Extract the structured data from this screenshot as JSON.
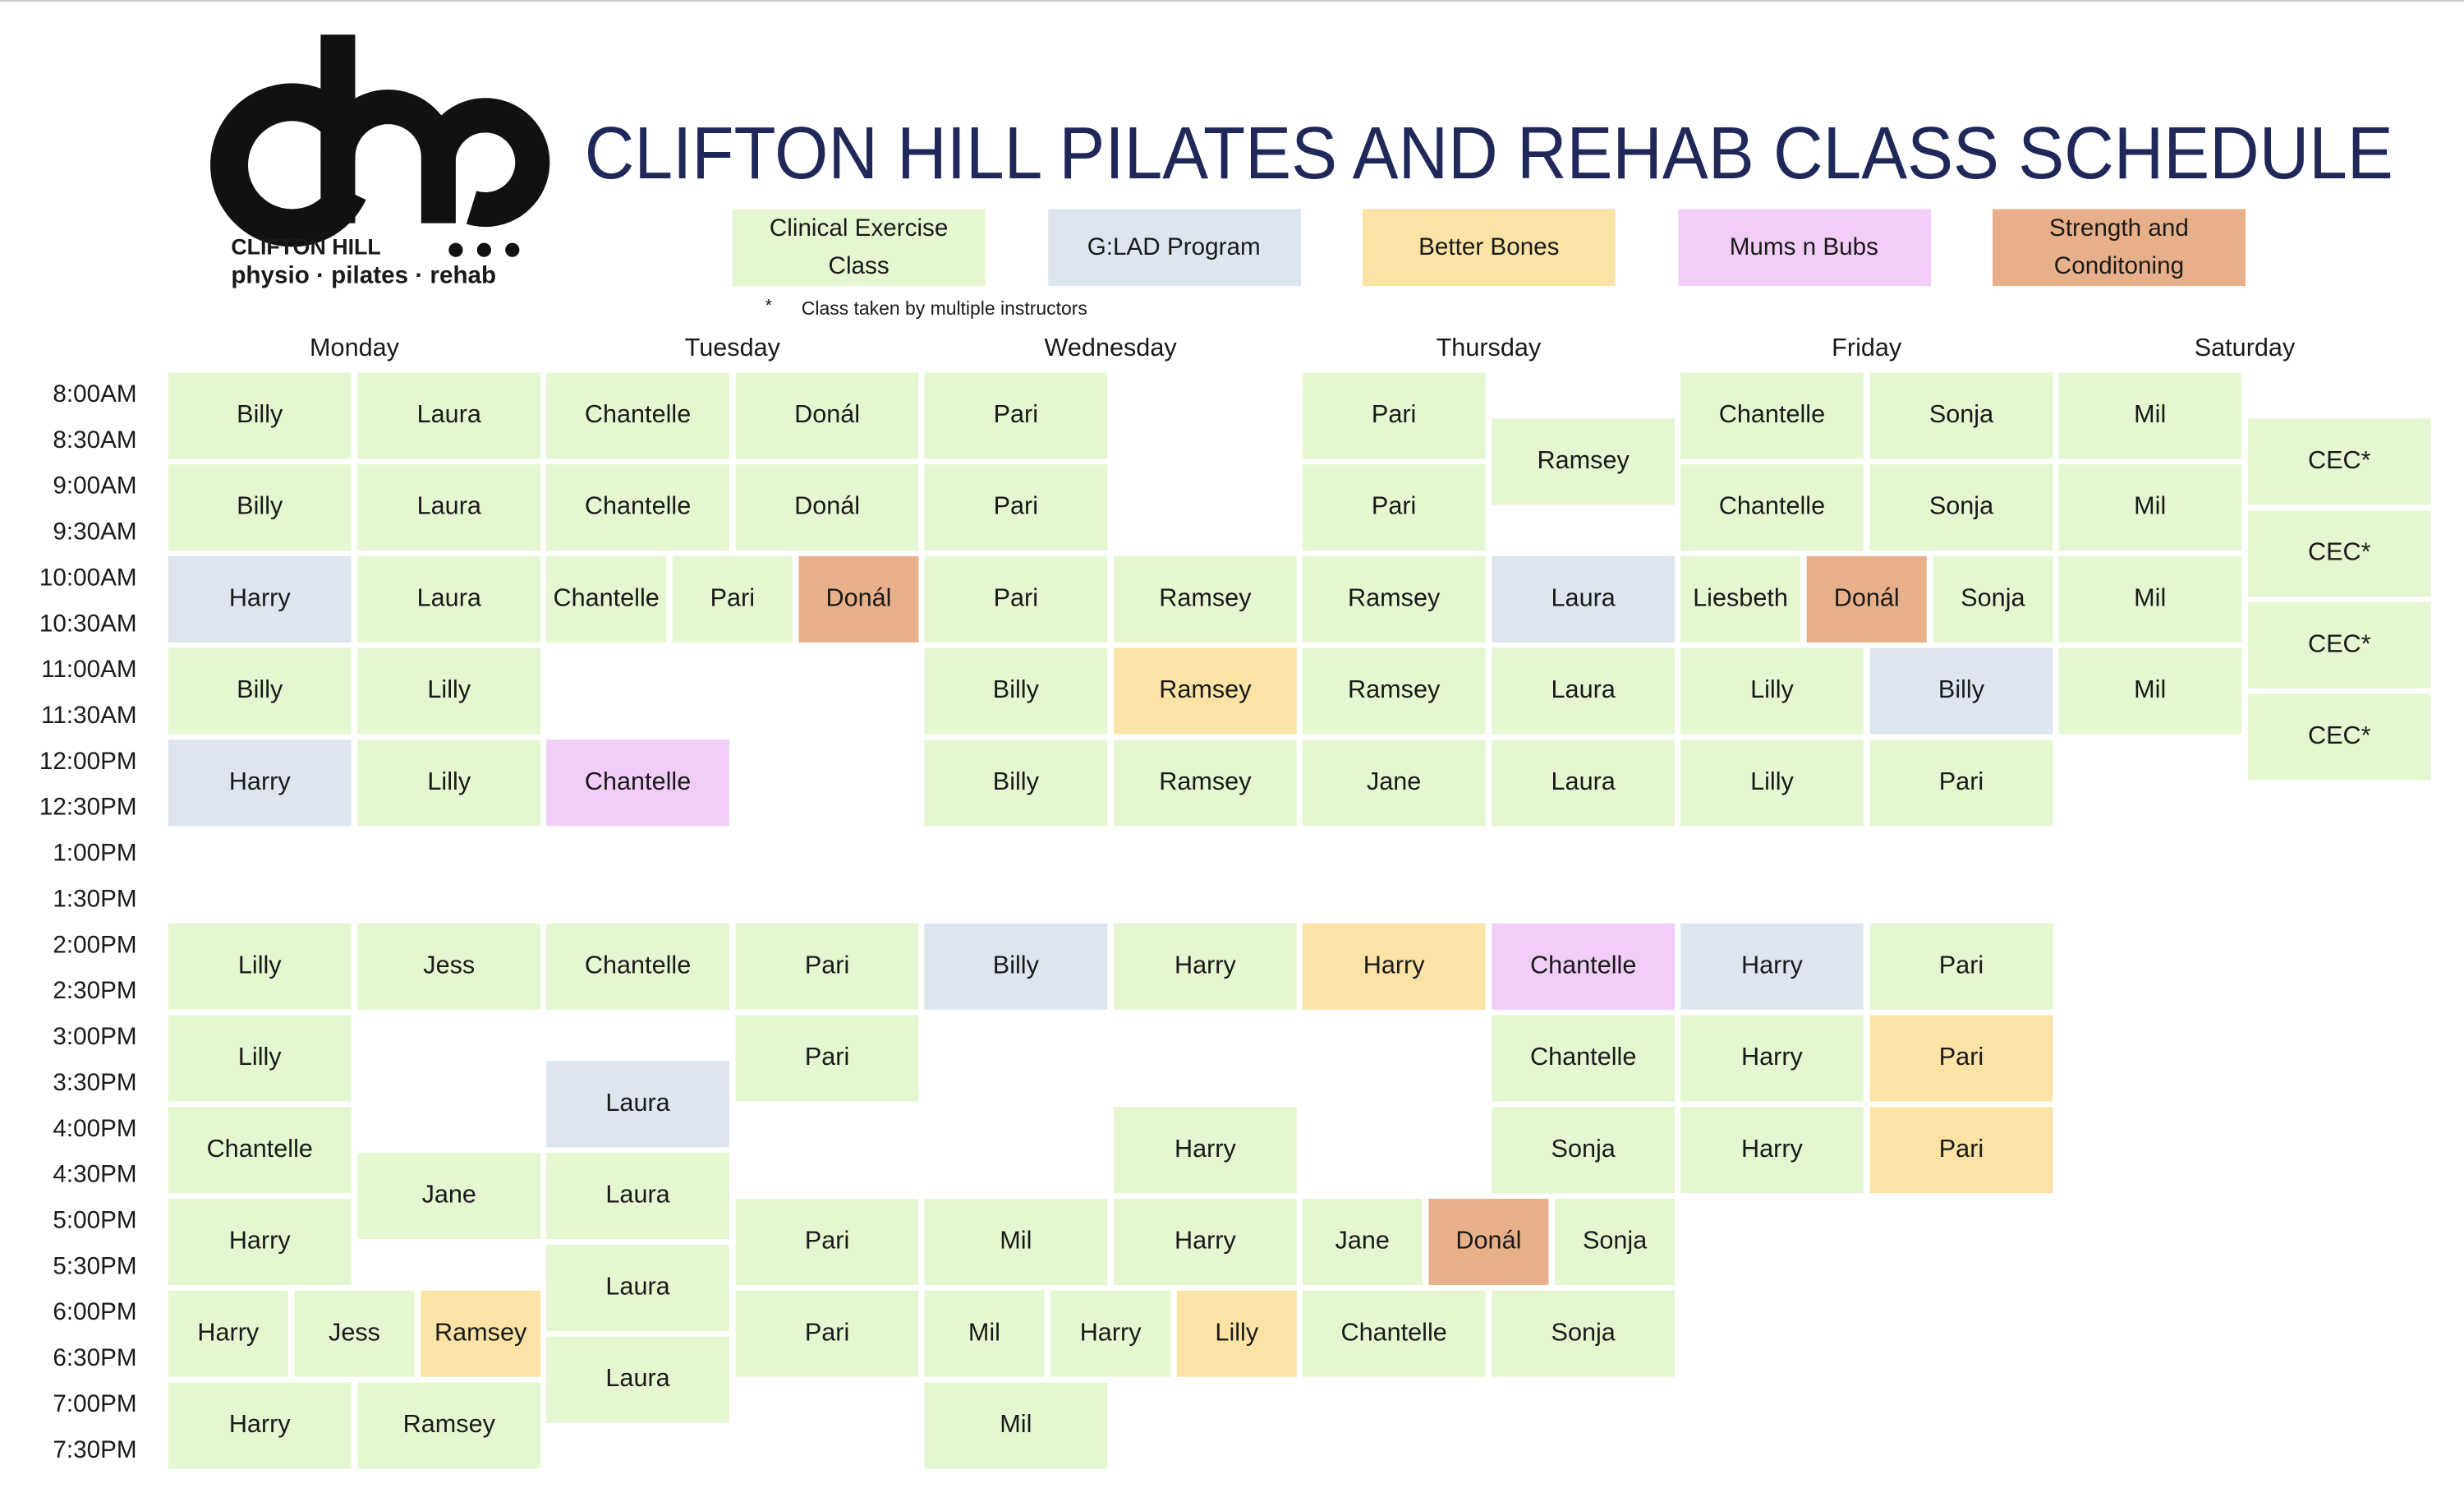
{
  "header": {
    "title": "CLIFTON HILL PILATES AND REHAB CLASS SCHEDULE",
    "logo_line1": "CLIFTON HILL",
    "logo_line2": "physio · pilates · rehab"
  },
  "legend": [
    {
      "label": "Clinical Exercise Class",
      "color": "#e5f7d0"
    },
    {
      "label": "G:LAD Program",
      "color": "#dde5f0"
    },
    {
      "label": "Better Bones",
      "color": "#fbe3a6"
    },
    {
      "label": "Mums n Bubs",
      "color": "#f1cdf7"
    },
    {
      "label": "Strength and Conditoning",
      "color": "#e8b08a"
    }
  ],
  "note": {
    "symbol": "*",
    "text": "Class taken by multiple instructors"
  },
  "times": [
    "8:00AM",
    "8:30AM",
    "9:00AM",
    "9:30AM",
    "10:00AM",
    "10:30AM",
    "11:00AM",
    "11:30AM",
    "12:00PM",
    "12:30PM",
    "1:00PM",
    "1:30PM",
    "2:00PM",
    "2:30PM",
    "3:00PM",
    "3:30PM",
    "4:00PM",
    "4:30PM",
    "5:00PM",
    "5:30PM",
    "6:00PM",
    "6:30PM",
    "7:00PM",
    "7:30PM"
  ],
  "days": [
    {
      "name": "Monday",
      "lanes": [
        [
          {
            "instructor": "Billy",
            "start": "8:00AM",
            "span": 2,
            "type": "Clinical Exercise Class"
          },
          {
            "instructor": "Billy",
            "start": "9:00AM",
            "span": 2,
            "type": "Clinical Exercise Class"
          },
          {
            "instructor": "Harry",
            "start": "10:00AM",
            "span": 2,
            "type": "G:LAD Program"
          },
          {
            "instructor": "Billy",
            "start": "11:00AM",
            "span": 2,
            "type": "Clinical Exercise Class"
          },
          {
            "instructor": "Harry",
            "start": "12:00PM",
            "span": 2,
            "type": "G:LAD Program"
          },
          {
            "instructor": "Lilly",
            "start": "2:00PM",
            "span": 2,
            "type": "Clinical Exercise Class"
          },
          {
            "instructor": "Lilly",
            "start": "3:00PM",
            "span": 2,
            "type": "Clinical Exercise Class"
          },
          {
            "instructor": "Chantelle",
            "start": "4:00PM",
            "span": 2,
            "type": "Clinical Exercise Class"
          },
          {
            "instructor": "Harry",
            "start": "5:00PM",
            "span": 2,
            "type": "Clinical Exercise Class"
          },
          {
            "instructor": "Harry",
            "start": "7:00PM",
            "span": 2,
            "type": "Clinical Exercise Class"
          }
        ],
        [
          {
            "instructor": "Laura",
            "start": "8:00AM",
            "span": 2,
            "type": "Clinical Exercise Class"
          },
          {
            "instructor": "Laura",
            "start": "9:00AM",
            "span": 2,
            "type": "Clinical Exercise Class"
          },
          {
            "instructor": "Laura",
            "start": "10:00AM",
            "span": 2,
            "type": "Clinical Exercise Class"
          },
          {
            "instructor": "Lilly",
            "start": "11:00AM",
            "span": 2,
            "type": "Clinical Exercise Class"
          },
          {
            "instructor": "Lilly",
            "start": "12:00PM",
            "span": 2,
            "type": "Clinical Exercise Class"
          },
          {
            "instructor": "Jess",
            "start": "2:00PM",
            "span": 2,
            "type": "Clinical Exercise Class"
          },
          {
            "instructor": "Jane",
            "start": "4:30PM",
            "span": 2,
            "type": "Clinical Exercise Class"
          },
          {
            "instructor": "Ramsey",
            "start": "7:00PM",
            "span": 2,
            "type": "Clinical Exercise Class"
          }
        ]
      ],
      "triples": [
        {
          "start": "6:00PM",
          "span": 2,
          "classes": [
            {
              "instructor": "Harry",
              "type": "Clinical Exercise Class"
            },
            {
              "instructor": "Jess",
              "type": "Clinical Exercise Class"
            },
            {
              "instructor": "Ramsey",
              "type": "Better Bones"
            }
          ]
        }
      ]
    },
    {
      "name": "Tuesday",
      "lanes": [
        [
          {
            "instructor": "Chantelle",
            "start": "8:00AM",
            "span": 2,
            "type": "Clinical Exercise Class"
          },
          {
            "instructor": "Chantelle",
            "start": "9:00AM",
            "span": 2,
            "type": "Clinical Exercise Class"
          },
          {
            "instructor": "Chantelle",
            "start": "12:00PM",
            "span": 2,
            "type": "Mums n Bubs"
          },
          {
            "instructor": "Chantelle",
            "start": "2:00PM",
            "span": 2,
            "type": "Clinical Exercise Class"
          },
          {
            "instructor": "Laura",
            "start": "3:30PM",
            "span": 2,
            "type": "G:LAD Program"
          },
          {
            "instructor": "Laura",
            "start": "4:30PM",
            "span": 2,
            "type": "Clinical Exercise Class"
          },
          {
            "instructor": "Laura",
            "start": "5:30PM",
            "span": 2,
            "type": "Clinical Exercise Class"
          },
          {
            "instructor": "Laura",
            "start": "6:30PM",
            "span": 2,
            "type": "Clinical Exercise Class"
          }
        ],
        [
          {
            "instructor": "Donál",
            "start": "8:00AM",
            "span": 2,
            "type": "Clinical Exercise Class"
          },
          {
            "instructor": "Donál",
            "start": "9:00AM",
            "span": 2,
            "type": "Clinical Exercise Class"
          },
          {
            "instructor": "Pari",
            "start": "2:00PM",
            "span": 2,
            "type": "Clinical Exercise Class"
          },
          {
            "instructor": "Pari",
            "start": "3:00PM",
            "span": 2,
            "type": "Clinical Exercise Class"
          },
          {
            "instructor": "Pari",
            "start": "5:00PM",
            "span": 2,
            "type": "Clinical Exercise Class"
          },
          {
            "instructor": "Pari",
            "start": "6:00PM",
            "span": 2,
            "type": "Clinical Exercise Class"
          }
        ]
      ],
      "triples": [
        {
          "start": "10:00AM",
          "span": 2,
          "classes": [
            {
              "instructor": "Chantelle",
              "type": "Clinical Exercise Class"
            },
            {
              "instructor": "Pari",
              "type": "Clinical Exercise Class"
            },
            {
              "instructor": "Donál",
              "type": "Strength and Conditoning"
            }
          ]
        }
      ]
    },
    {
      "name": "Wednesday",
      "lanes": [
        [
          {
            "instructor": "Pari",
            "start": "8:00AM",
            "span": 2,
            "type": "Clinical Exercise Class"
          },
          {
            "instructor": "Pari",
            "start": "9:00AM",
            "span": 2,
            "type": "Clinical Exercise Class"
          },
          {
            "instructor": "Pari",
            "start": "10:00AM",
            "span": 2,
            "type": "Clinical Exercise Class"
          },
          {
            "instructor": "Billy",
            "start": "11:00AM",
            "span": 2,
            "type": "Clinical Exercise Class"
          },
          {
            "instructor": "Billy",
            "start": "12:00PM",
            "span": 2,
            "type": "Clinical Exercise Class"
          },
          {
            "instructor": "Billy",
            "start": "2:00PM",
            "span": 2,
            "type": "G:LAD Program"
          },
          {
            "instructor": "Mil",
            "start": "5:00PM",
            "span": 2,
            "type": "Clinical Exercise Class"
          },
          {
            "instructor": "Mil",
            "start": "7:00PM",
            "span": 2,
            "type": "Clinical Exercise Class"
          }
        ],
        [
          {
            "instructor": "Ramsey",
            "start": "10:00AM",
            "span": 2,
            "type": "Clinical Exercise Class"
          },
          {
            "instructor": "Ramsey",
            "start": "11:00AM",
            "span": 2,
            "type": "Better Bones"
          },
          {
            "instructor": "Ramsey",
            "start": "12:00PM",
            "span": 2,
            "type": "Clinical Exercise Class"
          },
          {
            "instructor": "Harry",
            "start": "2:00PM",
            "span": 2,
            "type": "Clinical Exercise Class"
          },
          {
            "instructor": "Harry",
            "start": "4:00PM",
            "span": 2,
            "type": "Clinical Exercise Class"
          },
          {
            "instructor": "Harry",
            "start": "5:00PM",
            "span": 2,
            "type": "Clinical Exercise Class"
          }
        ]
      ],
      "triples": [
        {
          "start": "6:00PM",
          "span": 2,
          "classes": [
            {
              "instructor": "Mil",
              "type": "Clinical Exercise Class"
            },
            {
              "instructor": "Harry",
              "type": "Clinical Exercise Class"
            },
            {
              "instructor": "Lilly",
              "type": "Better Bones"
            }
          ]
        }
      ]
    },
    {
      "name": "Thursday",
      "lanes": [
        [
          {
            "instructor": "Pari",
            "start": "8:00AM",
            "span": 2,
            "type": "Clinical Exercise Class"
          },
          {
            "instructor": "Pari",
            "start": "9:00AM",
            "span": 2,
            "type": "Clinical Exercise Class"
          },
          {
            "instructor": "Ramsey",
            "start": "10:00AM",
            "span": 2,
            "type": "Clinical Exercise Class"
          },
          {
            "instructor": "Ramsey",
            "start": "11:00AM",
            "span": 2,
            "type": "Clinical Exercise Class"
          },
          {
            "instructor": "Jane",
            "start": "12:00PM",
            "span": 2,
            "type": "Clinical Exercise Class"
          },
          {
            "instructor": "Harry",
            "start": "2:00PM",
            "span": 2,
            "type": "Better Bones"
          },
          {
            "instructor": "Chantelle",
            "start": "6:00PM",
            "span": 2,
            "type": "Clinical Exercise Class"
          }
        ],
        [
          {
            "instructor": "Ramsey",
            "start": "8:30AM",
            "span": 2,
            "type": "Clinical Exercise Class"
          },
          {
            "instructor": "Laura",
            "start": "10:00AM",
            "span": 2,
            "type": "G:LAD Program"
          },
          {
            "instructor": "Laura",
            "start": "11:00AM",
            "span": 2,
            "type": "Clinical Exercise Class"
          },
          {
            "instructor": "Laura",
            "start": "12:00PM",
            "span": 2,
            "type": "Clinical Exercise Class"
          },
          {
            "instructor": "Chantelle",
            "start": "2:00PM",
            "span": 2,
            "type": "Mums n Bubs"
          },
          {
            "instructor": "Chantelle",
            "start": "3:00PM",
            "span": 2,
            "type": "Clinical Exercise Class"
          },
          {
            "instructor": "Sonja",
            "start": "4:00PM",
            "span": 2,
            "type": "Clinical Exercise Class"
          },
          {
            "instructor": "Sonja",
            "start": "6:00PM",
            "span": 2,
            "type": "Clinical Exercise Class"
          }
        ]
      ],
      "triples": [
        {
          "start": "5:00PM",
          "span": 2,
          "classes": [
            {
              "instructor": "Jane",
              "type": "Clinical Exercise Class"
            },
            {
              "instructor": "Donál",
              "type": "Strength and Conditoning"
            },
            {
              "instructor": "Sonja",
              "type": "Clinical Exercise Class"
            }
          ]
        }
      ]
    },
    {
      "name": "Friday",
      "lanes": [
        [
          {
            "instructor": "Chantelle",
            "start": "8:00AM",
            "span": 2,
            "type": "Clinical Exercise Class"
          },
          {
            "instructor": "Chantelle",
            "start": "9:00AM",
            "span": 2,
            "type": "Clinical Exercise Class"
          },
          {
            "instructor": "Lilly",
            "start": "11:00AM",
            "span": 2,
            "type": "Clinical Exercise Class"
          },
          {
            "instructor": "Lilly",
            "start": "12:00PM",
            "span": 2,
            "type": "Clinical Exercise Class"
          },
          {
            "instructor": "Harry",
            "start": "2:00PM",
            "span": 2,
            "type": "G:LAD Program"
          },
          {
            "instructor": "Harry",
            "start": "3:00PM",
            "span": 2,
            "type": "Clinical Exercise Class"
          },
          {
            "instructor": "Harry",
            "start": "4:00PM",
            "span": 2,
            "type": "Clinical Exercise Class"
          }
        ],
        [
          {
            "instructor": "Sonja",
            "start": "8:00AM",
            "span": 2,
            "type": "Clinical Exercise Class"
          },
          {
            "instructor": "Sonja",
            "start": "9:00AM",
            "span": 2,
            "type": "Clinical Exercise Class"
          },
          {
            "instructor": "Billy",
            "start": "11:00AM",
            "span": 2,
            "type": "G:LAD Program"
          },
          {
            "instructor": "Pari",
            "start": "12:00PM",
            "span": 2,
            "type": "Clinical Exercise Class"
          },
          {
            "instructor": "Pari",
            "start": "2:00PM",
            "span": 2,
            "type": "Clinical Exercise Class"
          },
          {
            "instructor": "Pari",
            "start": "3:00PM",
            "span": 2,
            "type": "Better Bones"
          },
          {
            "instructor": "Pari",
            "start": "4:00PM",
            "span": 2,
            "type": "Better Bones"
          }
        ]
      ],
      "triples": [
        {
          "start": "10:00AM",
          "span": 2,
          "classes": [
            {
              "instructor": "Liesbeth",
              "type": "Clinical Exercise Class"
            },
            {
              "instructor": "Donál",
              "type": "Strength and Conditoning"
            },
            {
              "instructor": "Sonja",
              "type": "Clinical Exercise Class"
            }
          ]
        }
      ]
    },
    {
      "name": "Saturday",
      "lanes": [
        [
          {
            "instructor": "Mil",
            "start": "8:00AM",
            "span": 2,
            "type": "Clinical Exercise Class"
          },
          {
            "instructor": "Mil",
            "start": "9:00AM",
            "span": 2,
            "type": "Clinical Exercise Class"
          },
          {
            "instructor": "Mil",
            "start": "10:00AM",
            "span": 2,
            "type": "Clinical Exercise Class"
          },
          {
            "instructor": "Mil",
            "start": "11:00AM",
            "span": 2,
            "type": "Clinical Exercise Class"
          }
        ],
        [
          {
            "instructor": "CEC*",
            "start": "8:30AM",
            "span": 2,
            "type": "Clinical Exercise Class"
          },
          {
            "instructor": "CEC*",
            "start": "9:30AM",
            "span": 2,
            "type": "Clinical Exercise Class"
          },
          {
            "instructor": "CEC*",
            "start": "10:30AM",
            "span": 2,
            "type": "Clinical Exercise Class"
          },
          {
            "instructor": "CEC*",
            "start": "11:30AM",
            "span": 2,
            "type": "Clinical Exercise Class"
          }
        ]
      ],
      "triples": []
    }
  ]
}
